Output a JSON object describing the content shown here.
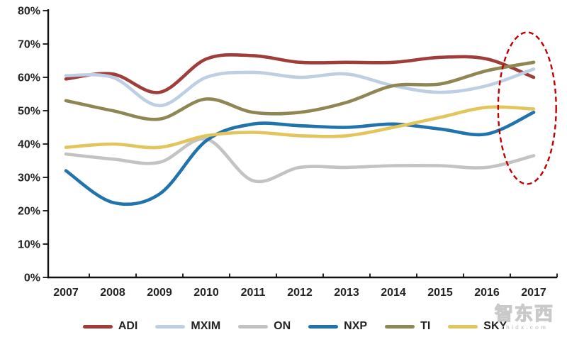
{
  "watermark": {
    "title": "智东西",
    "subtitle": "zhidx.com"
  },
  "chart_data": {
    "type": "line",
    "title": "",
    "xlabel": "",
    "ylabel": "",
    "unit": "%",
    "x": [
      2007,
      2008,
      2009,
      2010,
      2011,
      2012,
      2013,
      2014,
      2015,
      2016,
      2017
    ],
    "y_axis": {
      "min": 0,
      "max": 80,
      "tick_step": 10,
      "tick_labels": [
        "0%",
        "10%",
        "20%",
        "30%",
        "40%",
        "50%",
        "60%",
        "70%",
        "80%"
      ]
    },
    "grid": false,
    "line_style": "smooth",
    "legend_position": "bottom",
    "series": [
      {
        "name": "ADI",
        "color": "#9E3D3A",
        "values": [
          59.5,
          61,
          55.5,
          65.5,
          66.5,
          64.5,
          64.5,
          64.5,
          66,
          65.5,
          60
        ]
      },
      {
        "name": "MXIM",
        "color": "#BECFE3",
        "values": [
          60.5,
          60,
          51.5,
          60,
          61.5,
          60,
          61,
          57.5,
          55.5,
          57.5,
          62.5
        ]
      },
      {
        "name": "ON",
        "color": "#C3C3C3",
        "values": [
          37,
          35.5,
          34.5,
          41.5,
          29,
          33,
          33,
          33.5,
          33.5,
          33,
          36.5
        ]
      },
      {
        "name": "NXP",
        "color": "#2173AD",
        "values": [
          32,
          22.5,
          25,
          41,
          46,
          45.5,
          45,
          46,
          44.5,
          43,
          49.5
        ]
      },
      {
        "name": "TI",
        "color": "#8F8753",
        "values": [
          53,
          50,
          47.5,
          53.5,
          49.5,
          49.5,
          52.5,
          57.5,
          58,
          62,
          64.5
        ]
      },
      {
        "name": "SKY",
        "color": "#E2C55C",
        "values": [
          39,
          40,
          39,
          42.5,
          43.5,
          42.5,
          42.5,
          45,
          48,
          51,
          50.5
        ]
      }
    ],
    "annotation": {
      "shape": "dashed-ellipse",
      "color": "#C00000",
      "highlights": "2017 endpoint values",
      "x_range": [
        2016.24,
        2017.48
      ],
      "y_range": [
        28,
        73.5
      ]
    }
  }
}
